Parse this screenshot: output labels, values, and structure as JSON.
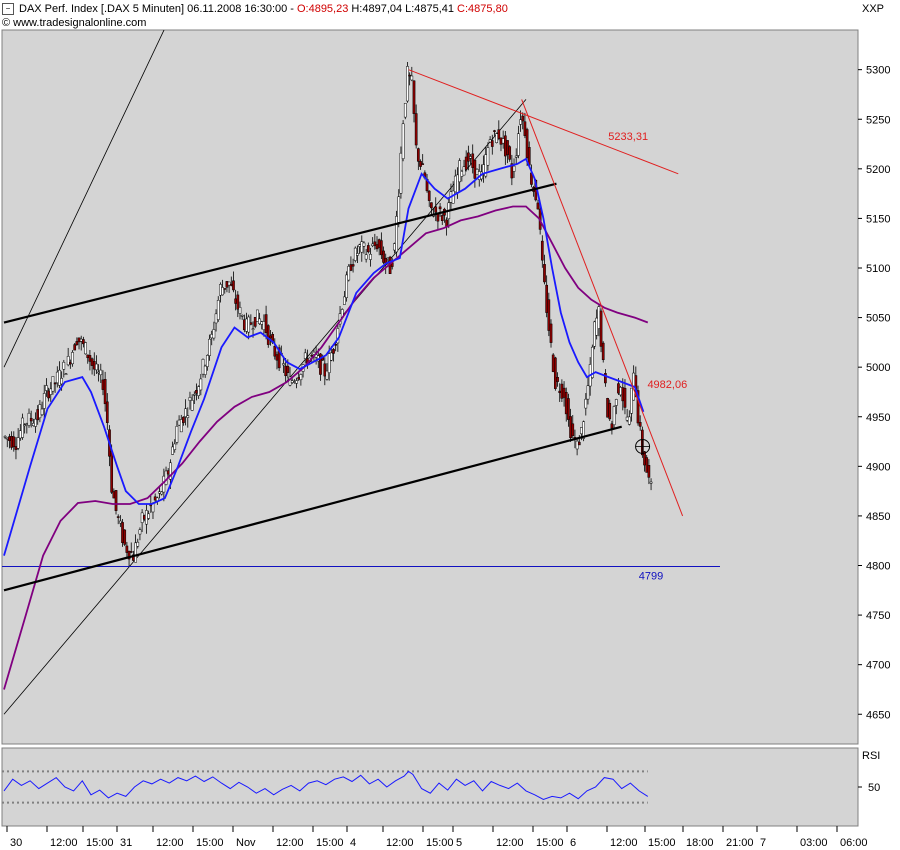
{
  "header": {
    "line1_prefix": "DAX Perf. Index [.DAX  5 Minuten] 06.11.2008 16:30:00 - ",
    "open": "O:4895,23",
    "high": "H:4897,04",
    "low": "L:4875,41",
    "close": "C:4875,80",
    "source": "© www.tradesignalonline.com"
  },
  "symbol": "XXP",
  "rsi_label": "RSI",
  "colors": {
    "plot_bg": "#d4d4d4",
    "ma_fast": "#1a1aff",
    "ma_slow": "#800080",
    "trend_red": "#e02020",
    "support_blue": "#1010c0",
    "channel": "#000000",
    "candle_up": "#ffffff",
    "candle_down": "#8b0000"
  },
  "chart_data": {
    "type": "line",
    "title": "DAX Perf. Index [.DAX  5 Minuten]",
    "y_ticks": [
      5300,
      5250,
      5200,
      5150,
      5100,
      5050,
      5000,
      4950,
      4900,
      4850,
      4800,
      4750,
      4700,
      4650
    ],
    "ylim": [
      4620,
      5340
    ],
    "x_ticks": [
      "30",
      "12:00",
      "15:00",
      "31",
      "12:00",
      "15:00",
      "Nov",
      "12:00",
      "15:00",
      "4",
      "12:00",
      "15:00",
      "5",
      "12:00",
      "15:00",
      "6",
      "12:00",
      "15:00",
      "18:00",
      "21:00",
      "7",
      "03:00",
      "06:00"
    ],
    "price_path": [
      [
        0,
        4930
      ],
      [
        3,
        4925
      ],
      [
        5,
        4945
      ],
      [
        8,
        4950
      ],
      [
        10,
        4975
      ],
      [
        12,
        4985
      ],
      [
        15,
        5005
      ],
      [
        17,
        5030
      ],
      [
        19,
        5018
      ],
      [
        21,
        4998
      ],
      [
        23,
        4985
      ],
      [
        24,
        4945
      ],
      [
        25,
        4880
      ],
      [
        26,
        4855
      ],
      [
        28,
        4820
      ],
      [
        30,
        4810
      ],
      [
        32,
        4845
      ],
      [
        34,
        4858
      ],
      [
        36,
        4870
      ],
      [
        38,
        4895
      ],
      [
        40,
        4940
      ],
      [
        42,
        4955
      ],
      [
        43,
        4965
      ],
      [
        45,
        4985
      ],
      [
        48,
        5030
      ],
      [
        50,
        5080
      ],
      [
        52,
        5085
      ],
      [
        54,
        5060
      ],
      [
        56,
        5040
      ],
      [
        58,
        5050
      ],
      [
        60,
        5045
      ],
      [
        62,
        5018
      ],
      [
        64,
        5005
      ],
      [
        66,
        4985
      ],
      [
        68,
        4995
      ],
      [
        70,
        5010
      ],
      [
        72,
        5008
      ],
      [
        74,
        4995
      ],
      [
        76,
        5020
      ],
      [
        78,
        5065
      ],
      [
        80,
        5105
      ],
      [
        82,
        5120
      ],
      [
        84,
        5115
      ],
      [
        86,
        5125
      ],
      [
        88,
        5105
      ],
      [
        89,
        5100
      ],
      [
        90,
        5120
      ],
      [
        91,
        5180
      ],
      [
        92,
        5250
      ],
      [
        93,
        5295
      ],
      [
        94,
        5285
      ],
      [
        95,
        5220
      ],
      [
        97,
        5190
      ],
      [
        98,
        5160
      ],
      [
        100,
        5155
      ],
      [
        102,
        5150
      ],
      [
        103,
        5170
      ],
      [
        105,
        5200
      ],
      [
        107,
        5210
      ],
      [
        109,
        5195
      ],
      [
        110,
        5190
      ],
      [
        112,
        5230
      ],
      [
        114,
        5235
      ],
      [
        116,
        5215
      ],
      [
        117,
        5195
      ],
      [
        118,
        5220
      ],
      [
        119,
        5255
      ],
      [
        120,
        5240
      ],
      [
        121,
        5200
      ],
      [
        122,
        5180
      ],
      [
        123,
        5165
      ],
      [
        124,
        5100
      ],
      [
        125,
        5060
      ],
      [
        126,
        5020
      ],
      [
        127,
        4985
      ],
      [
        129,
        4975
      ],
      [
        130,
        4945
      ],
      [
        131,
        4930
      ],
      [
        132,
        4920
      ],
      [
        133,
        4935
      ],
      [
        134,
        4965
      ],
      [
        135,
        4995
      ],
      [
        136,
        5040
      ],
      [
        137,
        5055
      ],
      [
        138,
        5000
      ],
      [
        139,
        4955
      ],
      [
        140,
        4940
      ],
      [
        141,
        4975
      ],
      [
        142,
        4985
      ],
      [
        143,
        4955
      ],
      [
        144,
        4945
      ],
      [
        145,
        5000
      ],
      [
        146,
        4950
      ],
      [
        147,
        4915
      ],
      [
        148,
        4895
      ],
      [
        149,
        4876
      ]
    ],
    "ma_fast": [
      [
        0,
        4810
      ],
      [
        6,
        4900
      ],
      [
        10,
        4958
      ],
      [
        14,
        4985
      ],
      [
        18,
        4990
      ],
      [
        20,
        4975
      ],
      [
        23,
        4940
      ],
      [
        26,
        4900
      ],
      [
        28,
        4875
      ],
      [
        31,
        4862
      ],
      [
        34,
        4862
      ],
      [
        37,
        4868
      ],
      [
        40,
        4900
      ],
      [
        43,
        4935
      ],
      [
        46,
        4968
      ],
      [
        50,
        5020
      ],
      [
        53,
        5040
      ],
      [
        56,
        5030
      ],
      [
        59,
        5035
      ],
      [
        62,
        5025
      ],
      [
        65,
        5005
      ],
      [
        68,
        4998
      ],
      [
        71,
        5005
      ],
      [
        74,
        5012
      ],
      [
        77,
        5030
      ],
      [
        81,
        5075
      ],
      [
        85,
        5095
      ],
      [
        88,
        5105
      ],
      [
        91,
        5110
      ],
      [
        93,
        5160
      ],
      [
        96,
        5195
      ],
      [
        99,
        5180
      ],
      [
        102,
        5170
      ],
      [
        106,
        5180
      ],
      [
        110,
        5195
      ],
      [
        114,
        5200
      ],
      [
        118,
        5205
      ],
      [
        120,
        5210
      ],
      [
        122,
        5190
      ],
      [
        124,
        5150
      ],
      [
        126,
        5100
      ],
      [
        128,
        5055
      ],
      [
        130,
        5025
      ],
      [
        132,
        5005
      ],
      [
        134,
        4990
      ],
      [
        136,
        4995
      ],
      [
        139,
        4990
      ],
      [
        142,
        4985
      ],
      [
        145,
        4980
      ],
      [
        147,
        4955
      ]
    ],
    "ma_slow": [
      [
        0,
        4675
      ],
      [
        5,
        4750
      ],
      [
        9,
        4810
      ],
      [
        13,
        4845
      ],
      [
        17,
        4863
      ],
      [
        21,
        4865
      ],
      [
        25,
        4862
      ],
      [
        29,
        4862
      ],
      [
        33,
        4868
      ],
      [
        37,
        4885
      ],
      [
        41,
        4903
      ],
      [
        45,
        4925
      ],
      [
        49,
        4945
      ],
      [
        53,
        4960
      ],
      [
        57,
        4970
      ],
      [
        61,
        4975
      ],
      [
        65,
        4985
      ],
      [
        69,
        5000
      ],
      [
        73,
        5020
      ],
      [
        77,
        5045
      ],
      [
        81,
        5070
      ],
      [
        85,
        5090
      ],
      [
        89,
        5105
      ],
      [
        93,
        5120
      ],
      [
        97,
        5135
      ],
      [
        101,
        5140
      ],
      [
        105,
        5148
      ],
      [
        109,
        5152
      ],
      [
        113,
        5158
      ],
      [
        117,
        5162
      ],
      [
        120,
        5162
      ],
      [
        123,
        5150
      ],
      [
        126,
        5125
      ],
      [
        129,
        5100
      ],
      [
        132,
        5080
      ],
      [
        135,
        5068
      ],
      [
        138,
        5060
      ],
      [
        141,
        5055
      ],
      [
        145,
        5050
      ],
      [
        148,
        5045
      ]
    ],
    "rsi": [
      [
        0,
        45
      ],
      [
        2,
        60
      ],
      [
        4,
        52
      ],
      [
        6,
        58
      ],
      [
        8,
        48
      ],
      [
        10,
        55
      ],
      [
        12,
        62
      ],
      [
        14,
        50
      ],
      [
        16,
        45
      ],
      [
        18,
        58
      ],
      [
        20,
        40
      ],
      [
        22,
        46
      ],
      [
        24,
        36
      ],
      [
        26,
        42
      ],
      [
        28,
        38
      ],
      [
        30,
        50
      ],
      [
        32,
        58
      ],
      [
        34,
        54
      ],
      [
        36,
        60
      ],
      [
        38,
        55
      ],
      [
        40,
        62
      ],
      [
        42,
        58
      ],
      [
        44,
        64
      ],
      [
        46,
        57
      ],
      [
        48,
        63
      ],
      [
        50,
        55
      ],
      [
        52,
        48
      ],
      [
        54,
        56
      ],
      [
        56,
        50
      ],
      [
        58,
        42
      ],
      [
        60,
        48
      ],
      [
        62,
        40
      ],
      [
        64,
        47
      ],
      [
        66,
        52
      ],
      [
        68,
        45
      ],
      [
        70,
        55
      ],
      [
        72,
        58
      ],
      [
        74,
        53
      ],
      [
        76,
        60
      ],
      [
        78,
        63
      ],
      [
        80,
        57
      ],
      [
        82,
        65
      ],
      [
        84,
        54
      ],
      [
        86,
        60
      ],
      [
        88,
        50
      ],
      [
        90,
        58
      ],
      [
        92,
        64
      ],
      [
        93,
        70
      ],
      [
        94,
        66
      ],
      [
        96,
        48
      ],
      [
        98,
        42
      ],
      [
        100,
        55
      ],
      [
        102,
        46
      ],
      [
        104,
        60
      ],
      [
        106,
        52
      ],
      [
        108,
        58
      ],
      [
        110,
        45
      ],
      [
        112,
        57
      ],
      [
        114,
        52
      ],
      [
        116,
        48
      ],
      [
        118,
        55
      ],
      [
        120,
        45
      ],
      [
        122,
        40
      ],
      [
        124,
        34
      ],
      [
        126,
        38
      ],
      [
        128,
        36
      ],
      [
        130,
        42
      ],
      [
        132,
        35
      ],
      [
        134,
        45
      ],
      [
        136,
        50
      ],
      [
        138,
        62
      ],
      [
        140,
        60
      ],
      [
        142,
        48
      ],
      [
        144,
        55
      ],
      [
        146,
        45
      ],
      [
        148,
        38
      ]
    ],
    "rsi_ticks": [
      50
    ],
    "rsi_bands": [
      70,
      30
    ],
    "lines": {
      "upper_channel_start": [
        0,
        5045
      ],
      "upper_channel_end": [
        127,
        5185
      ],
      "lower_channel_start": [
        0,
        4775
      ],
      "lower_channel_end": [
        142,
        4940
      ],
      "thin_channel_a_start": [
        0,
        5000
      ],
      "thin_channel_a_end": [
        66,
        5610
      ],
      "thin_channel_b_start": [
        0,
        4650
      ],
      "thin_channel_b_end": [
        120,
        5270
      ],
      "resistance_start": [
        93,
        5300
      ],
      "resistance_end": [
        155,
        5195
      ],
      "downtrend_start": [
        119,
        5270
      ],
      "downtrend_end": [
        156,
        4850
      ],
      "support_level": 4799
    },
    "annotations": [
      {
        "text": "5233,31",
        "at": [
          138,
          5233
        ],
        "color": "red"
      },
      {
        "text": "4982,06",
        "at": [
          147,
          4983
        ],
        "color": "red"
      },
      {
        "text": "4799",
        "at": [
          145,
          4790
        ],
        "color": "blue"
      }
    ]
  }
}
